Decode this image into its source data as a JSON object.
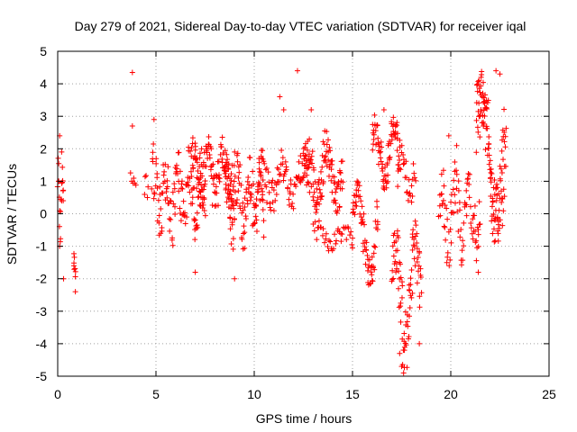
{
  "chart_data": {
    "type": "scatter",
    "title": "Day 279 of 2021, Sidereal Day-to-day VTEC variation (SDTVAR) for receiver iqal",
    "xlabel": "GPS time / hours",
    "ylabel": "SDTVAR / TECUs",
    "xlim": [
      0,
      25
    ],
    "ylim": [
      -5,
      5
    ],
    "xticks": [
      "0",
      "5",
      "10",
      "15",
      "20",
      "25"
    ],
    "yticks": [
      "-5",
      "-4",
      "-3",
      "-2",
      "-1",
      "0",
      "1",
      "2",
      "3",
      "4",
      "5"
    ],
    "grid": true,
    "marker": "+",
    "color": "#ff0000",
    "segments": [
      {
        "x0": 0.0,
        "x1": 0.3,
        "base": 0.4,
        "amp": 0.9,
        "freq": 3,
        "spread": 0.6,
        "n": 20
      },
      {
        "x0": 0.8,
        "x1": 0.9,
        "base": -1.7,
        "amp": 0.5,
        "freq": 1,
        "spread": 0.4,
        "n": 8
      },
      {
        "x0": 3.7,
        "x1": 4.0,
        "base": 0.9,
        "amp": 0.3,
        "freq": 1,
        "spread": 0.3,
        "n": 6
      },
      {
        "x0": 4.4,
        "x1": 4.6,
        "base": 0.7,
        "amp": 0.3,
        "freq": 1,
        "spread": 0.3,
        "n": 5
      },
      {
        "x0": 4.8,
        "x1": 7.5,
        "base": 0.6,
        "amp": 0.7,
        "freq": 9,
        "spread": 0.9,
        "n": 130
      },
      {
        "x0": 6.8,
        "x1": 9.0,
        "base": 1.3,
        "amp": 0.7,
        "freq": 6,
        "spread": 0.7,
        "n": 120
      },
      {
        "x0": 8.5,
        "x1": 10.5,
        "base": 0.4,
        "amp": 0.8,
        "freq": 7,
        "spread": 0.8,
        "n": 110
      },
      {
        "x0": 10.2,
        "x1": 12.8,
        "base": 1.0,
        "amp": 0.5,
        "freq": 5,
        "spread": 0.5,
        "n": 90
      },
      {
        "x0": 12.5,
        "x1": 14.5,
        "base": 1.2,
        "amp": 0.8,
        "freq": 4,
        "spread": 0.6,
        "n": 110
      },
      {
        "x0": 13.0,
        "x1": 15.0,
        "base": -0.7,
        "amp": 0.2,
        "freq": 3,
        "spread": 0.3,
        "n": 40
      },
      {
        "x0": 15.0,
        "x1": 16.3,
        "base": -0.6,
        "amp": 1.3,
        "freq": 2,
        "spread": 0.5,
        "n": 70
      },
      {
        "x0": 16.0,
        "x1": 17.4,
        "base": 1.8,
        "amp": 0.8,
        "freq": 3,
        "spread": 0.5,
        "n": 80
      },
      {
        "x0": 17.0,
        "x1": 18.5,
        "base": -2.4,
        "amp": 1.6,
        "freq": 3,
        "spread": 0.8,
        "n": 90
      },
      {
        "x0": 17.3,
        "x1": 18.2,
        "base": 1.2,
        "amp": 0.6,
        "freq": 2,
        "spread": 0.5,
        "n": 30
      },
      {
        "x0": 19.4,
        "x1": 21.5,
        "base": 0.0,
        "amp": 0.9,
        "freq": 6,
        "spread": 0.8,
        "n": 90
      },
      {
        "x0": 21.3,
        "x1": 22.8,
        "base": 1.8,
        "amp": 1.9,
        "freq": 2,
        "spread": 0.9,
        "n": 130
      }
    ],
    "outliers": [
      {
        "x": 3.8,
        "y": 4.35
      },
      {
        "x": 3.8,
        "y": 2.7
      },
      {
        "x": 4.9,
        "y": 2.9
      },
      {
        "x": 12.2,
        "y": 4.4
      },
      {
        "x": 11.3,
        "y": 3.6
      },
      {
        "x": 11.5,
        "y": 3.2
      },
      {
        "x": 12.9,
        "y": 3.2
      },
      {
        "x": 16.6,
        "y": 3.2
      },
      {
        "x": 0.1,
        "y": 2.4
      },
      {
        "x": 0.2,
        "y": 1.9
      },
      {
        "x": 0.1,
        "y": -1.0
      },
      {
        "x": 0.3,
        "y": -2.0
      },
      {
        "x": 0.9,
        "y": -2.4
      },
      {
        "x": 9.0,
        "y": -2.0
      },
      {
        "x": 17.6,
        "y": -4.9
      },
      {
        "x": 17.5,
        "y": -4.7
      },
      {
        "x": 17.4,
        "y": -4.3
      },
      {
        "x": 18.4,
        "y": -4.0
      },
      {
        "x": 22.3,
        "y": 4.4
      },
      {
        "x": 22.5,
        "y": 4.3
      },
      {
        "x": 19.9,
        "y": 2.4
      },
      {
        "x": 21.4,
        "y": -1.8
      },
      {
        "x": 20.3,
        "y": 2.1
      },
      {
        "x": 7.0,
        "y": -1.8
      }
    ]
  }
}
